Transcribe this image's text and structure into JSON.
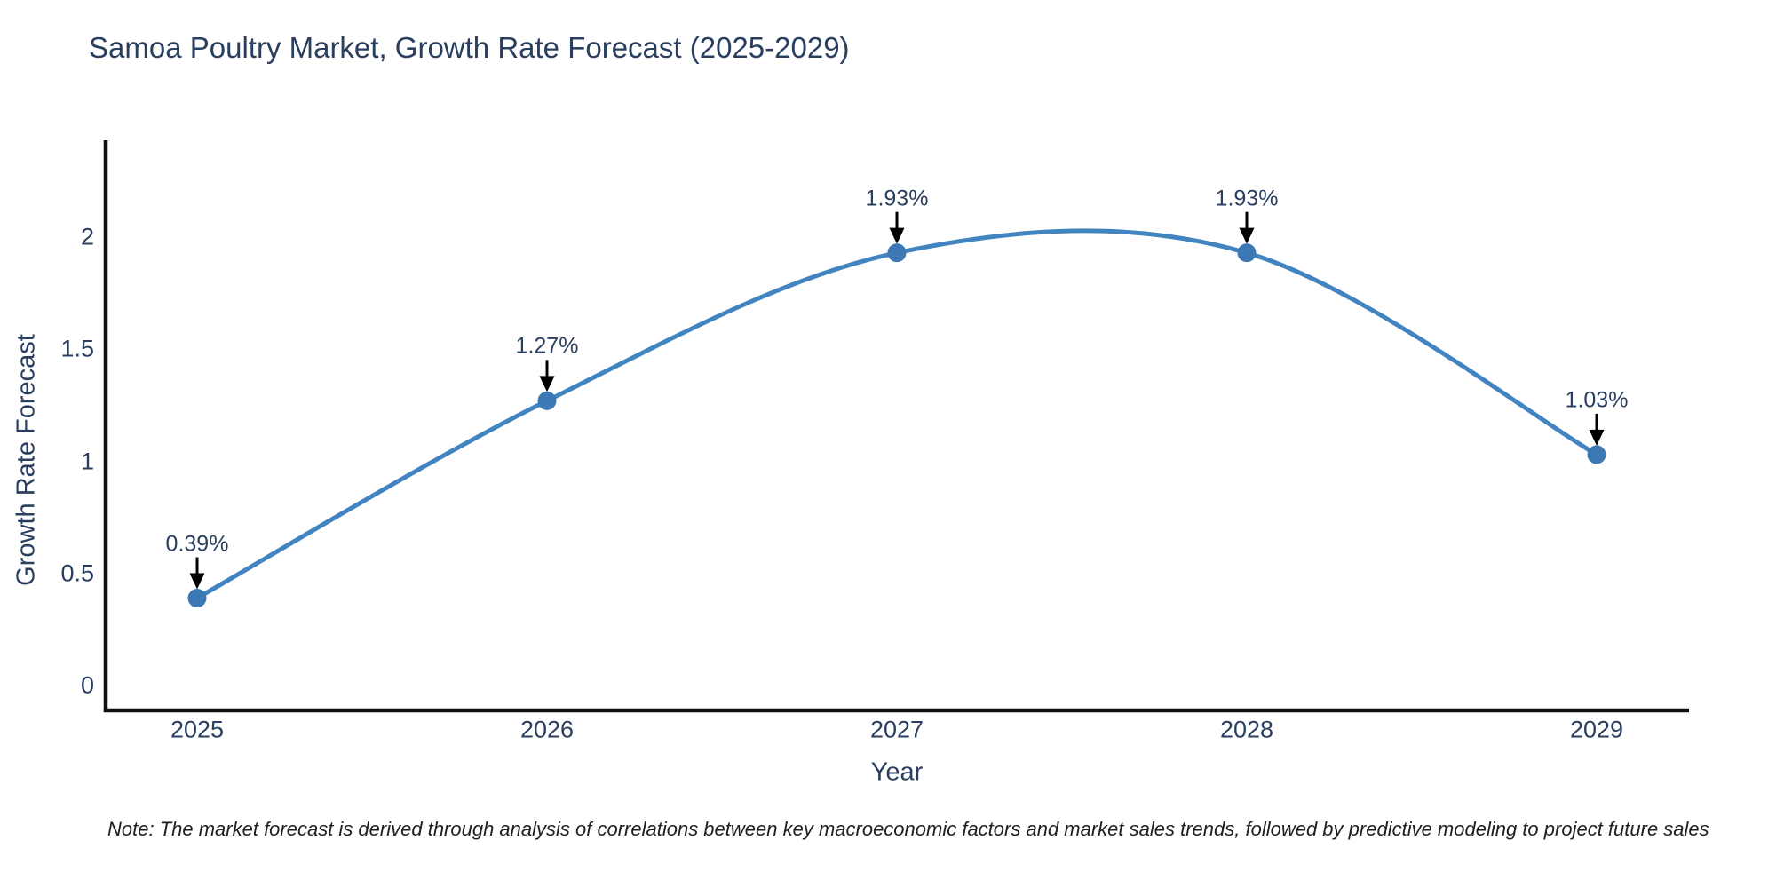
{
  "title": "Samoa Poultry Market, Growth Rate Forecast (2025-2029)",
  "note": "Note: The market forecast is derived through analysis of correlations between key macroeconomic factors and market sales trends, followed by predictive modeling to project future sales",
  "chart_data": {
    "type": "line",
    "line_shape": "spline",
    "title": "Samoa Poultry Market, Growth Rate Forecast (2025-2029)",
    "xlabel": "Year",
    "ylabel": "Growth Rate Forecast",
    "categories": [
      "2025",
      "2026",
      "2027",
      "2028",
      "2029"
    ],
    "series": [
      {
        "name": "Growth Rate Forecast",
        "values": [
          0.39,
          1.27,
          1.93,
          1.93,
          1.03
        ],
        "point_labels": [
          "0.39%",
          "1.27%",
          "1.93%",
          "1.93%",
          "1.03%"
        ]
      }
    ],
    "y_ticks": [
      0,
      0.5,
      1,
      1.5,
      2
    ],
    "ylim": [
      -0.11,
      2.42
    ],
    "grid": false,
    "legend": false,
    "annotations": "each point labeled with percent value and downward black arrow",
    "colors": {
      "line": "#4284c0",
      "marker": "#3c79b4",
      "axis": "#111111",
      "text": "#2a3f5f",
      "arrow": "#000000",
      "note": "#1f1f1f",
      "background": "#ffffff"
    }
  }
}
